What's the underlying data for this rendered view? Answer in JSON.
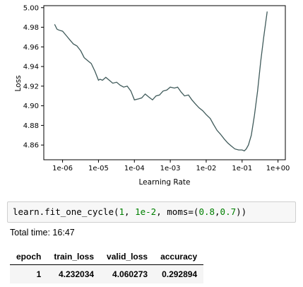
{
  "chart_data": {
    "type": "line",
    "xlabel": "Learning Rate",
    "ylabel": "Loss",
    "xscale": "log",
    "xlim": [
      3e-07,
      1.6
    ],
    "ylim": [
      4.845,
      5.002
    ],
    "xticks": [
      "1e-06",
      "1e-05",
      "1e-04",
      "1e-03",
      "1e-02",
      "1e-01",
      "1e+00"
    ],
    "yticks": [
      "4.86",
      "4.88",
      "4.90",
      "4.92",
      "4.94",
      "4.96",
      "4.98",
      "5.00"
    ],
    "line_color": "#3f5a5a",
    "x": [
      6e-07,
      7e-07,
      8e-07,
      1e-06,
      1.3e-06,
      1.6e-06,
      2e-06,
      2.5e-06,
      3.2e-06,
      4e-06,
      5e-06,
      6.3e-06,
      8e-06,
      1e-05,
      1.1e-05,
      1.3e-05,
      1.6e-05,
      2e-05,
      2.5e-05,
      3.2e-05,
      4e-05,
      5e-05,
      6.3e-05,
      8e-05,
      0.0001,
      0.00013,
      0.00016,
      0.0002,
      0.00025,
      0.00032,
      0.0004,
      0.0005,
      0.00063,
      0.0008,
      0.001,
      0.0013,
      0.0016,
      0.002,
      0.0025,
      0.0032,
      0.004,
      0.005,
      0.0063,
      0.008,
      0.01,
      0.013,
      0.016,
      0.02,
      0.025,
      0.032,
      0.04,
      0.05,
      0.063,
      0.08,
      0.1,
      0.115,
      0.13,
      0.15,
      0.18,
      0.22,
      0.27,
      0.33,
      0.4,
      0.5
    ],
    "y": [
      4.983,
      4.978,
      4.977,
      4.976,
      4.971,
      4.967,
      4.963,
      4.961,
      4.956,
      4.949,
      4.946,
      4.943,
      4.935,
      4.926,
      4.927,
      4.926,
      4.929,
      4.926,
      4.923,
      4.924,
      4.921,
      4.919,
      4.92,
      4.915,
      4.906,
      4.907,
      4.908,
      4.912,
      4.909,
      4.906,
      4.91,
      4.911,
      4.915,
      4.916,
      4.919,
      4.918,
      4.919,
      4.914,
      4.91,
      4.911,
      4.906,
      4.902,
      4.898,
      4.895,
      4.891,
      4.887,
      4.881,
      4.875,
      4.871,
      4.866,
      4.862,
      4.859,
      4.856,
      4.855,
      4.855,
      4.854,
      4.856,
      4.86,
      4.87,
      4.89,
      4.915,
      4.945,
      4.97,
      4.996
    ]
  },
  "code": {
    "prefix": "learn.fit_one_cycle(",
    "arg1": "1",
    "sep1": ", ",
    "arg2": "1e-2",
    "sep2": ", moms=(",
    "arg3": "0.8",
    "sep3": ",",
    "arg4": "0.7",
    "suffix": "))"
  },
  "total_time": "Total time: 16:47",
  "results": {
    "headers": [
      "epoch",
      "train_loss",
      "valid_loss",
      "accuracy"
    ],
    "rows": [
      [
        "1",
        "4.232034",
        "4.060273",
        "0.292894"
      ]
    ]
  }
}
